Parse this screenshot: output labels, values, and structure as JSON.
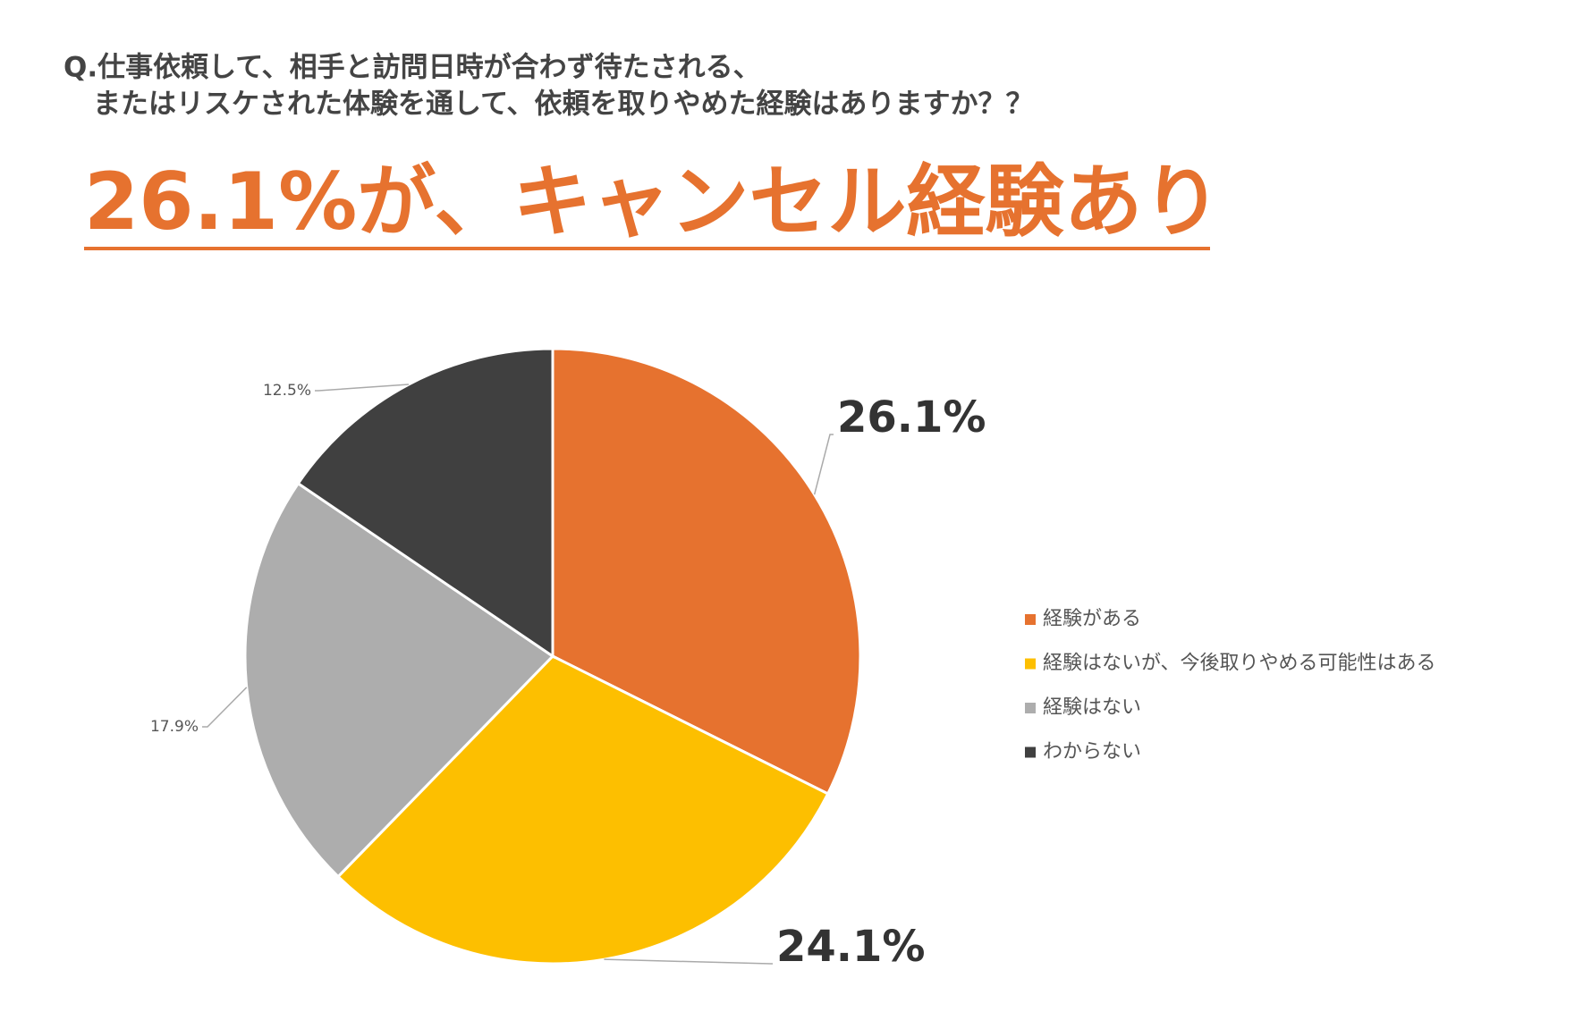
{
  "chart_data": {
    "type": "pie",
    "title": "Q.仕事依頼して、相手と訪問日時が合わず待たされる、",
    "subtitle": "またはリスケされた体験を通して、依頼を取りやめた経験はありますか？？",
    "headline": "26.1%が、キャンセル経験あり",
    "categories": [
      "経験がある",
      "経験はないが、今後取りやめる可能性はある",
      "経験はない",
      "わからない"
    ],
    "values": [
      26.1,
      24.1,
      17.9,
      12.5
    ],
    "value_labels": [
      "26.1%",
      "24.1%",
      "17.9%",
      "12.5%"
    ],
    "colors": [
      "#e6722f",
      "#fdbf00",
      "#adadad",
      "#404040"
    ],
    "legend": "right"
  }
}
